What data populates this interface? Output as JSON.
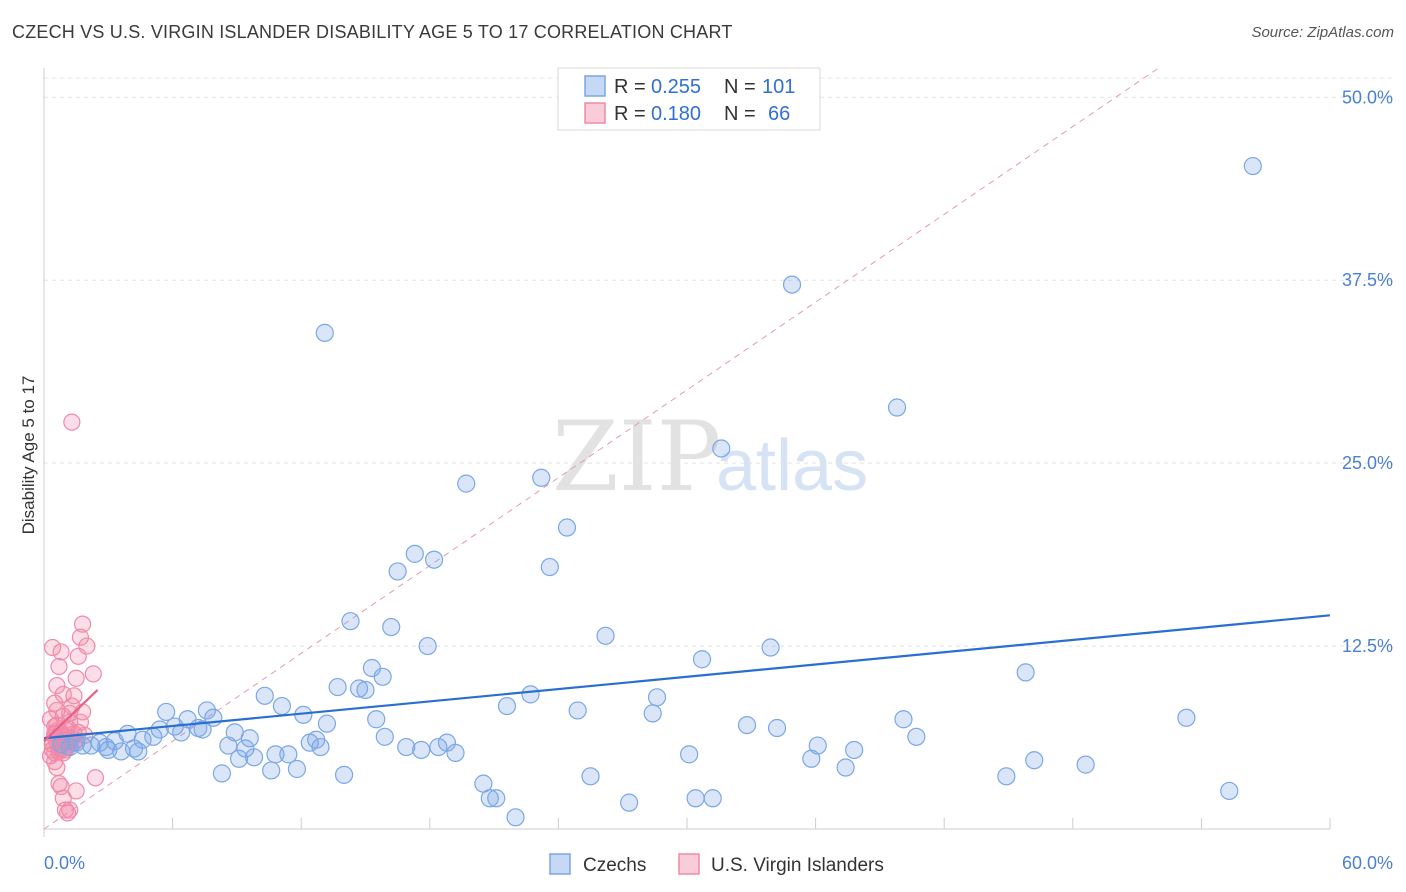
{
  "title": "CZECH VS U.S. VIRGIN ISLANDER DISABILITY AGE 5 TO 17 CORRELATION CHART",
  "source": "Source: ZipAtlas.com",
  "watermark": {
    "zip": "ZIP",
    "atlas": "atlas"
  },
  "legend": {
    "rows": [
      {
        "r_label": "R = ",
        "r_value": "0.255",
        "n_label": "N = ",
        "n_value": "101"
      },
      {
        "r_label": "R = ",
        "r_value": "0.180",
        "n_label": "N = ",
        "n_value": "66"
      }
    ]
  },
  "chart_data": {
    "type": "scatter",
    "title": "CZECH VS U.S. VIRGIN ISLANDER DISABILITY AGE 5 TO 17 CORRELATION CHART",
    "xlabel": "",
    "ylabel": "Disability Age 5 to 17",
    "xlim": [
      0,
      60
    ],
    "ylim": [
      0,
      52
    ],
    "x_tick_labels": [
      "0.0%",
      "60.0%"
    ],
    "y_ticks": [
      12.5,
      25.0,
      37.5,
      50.0
    ],
    "y_tick_labels": [
      "12.5%",
      "25.0%",
      "37.5%",
      "50.0%"
    ],
    "colors": {
      "czechs": "#7aa7e6",
      "virgin": "#f08aa8",
      "czech_line": "#2a6fd0",
      "virgin_line": "#e8608a",
      "diag": "#e59ab2"
    },
    "series": [
      {
        "name": "Czechs",
        "trend": {
          "x": [
            0,
            60
          ],
          "y": [
            6.2,
            14.6
          ]
        },
        "points": [
          [
            0.8,
            5.8
          ],
          [
            1.2,
            5.6
          ],
          [
            1.5,
            5.9
          ],
          [
            1.8,
            5.7
          ],
          [
            2.2,
            5.7
          ],
          [
            2.6,
            5.9
          ],
          [
            3.0,
            5.4
          ],
          [
            3.3,
            6.0
          ],
          [
            3.9,
            6.5
          ],
          [
            4.4,
            5.3
          ],
          [
            4.6,
            6.1
          ],
          [
            5.1,
            6.3
          ],
          [
            5.4,
            6.8
          ],
          [
            5.7,
            8.0
          ],
          [
            6.1,
            7.0
          ],
          [
            6.4,
            6.6
          ],
          [
            6.7,
            7.5
          ],
          [
            7.2,
            6.9
          ],
          [
            7.6,
            8.1
          ],
          [
            7.9,
            7.6
          ],
          [
            8.3,
            3.8
          ],
          [
            8.6,
            5.7
          ],
          [
            8.9,
            6.6
          ],
          [
            9.1,
            4.8
          ],
          [
            9.4,
            5.5
          ],
          [
            9.8,
            4.9
          ],
          [
            10.3,
            9.1
          ],
          [
            10.6,
            4.0
          ],
          [
            11.1,
            8.4
          ],
          [
            11.4,
            5.1
          ],
          [
            11.8,
            4.1
          ],
          [
            12.1,
            7.8
          ],
          [
            12.4,
            5.9
          ],
          [
            12.9,
            5.6
          ],
          [
            13.2,
            7.2
          ],
          [
            13.7,
            9.7
          ],
          [
            14.0,
            3.7
          ],
          [
            14.3,
            14.2
          ],
          [
            14.7,
            9.6
          ],
          [
            15.0,
            9.5
          ],
          [
            15.3,
            11.0
          ],
          [
            15.5,
            7.5
          ],
          [
            15.8,
            10.4
          ],
          [
            16.2,
            13.8
          ],
          [
            16.5,
            17.6
          ],
          [
            16.9,
            5.6
          ],
          [
            17.3,
            18.8
          ],
          [
            17.6,
            5.4
          ],
          [
            17.9,
            12.5
          ],
          [
            18.2,
            18.4
          ],
          [
            18.4,
            5.6
          ],
          [
            18.8,
            5.9
          ],
          [
            19.2,
            5.2
          ],
          [
            19.7,
            23.6
          ],
          [
            20.5,
            3.1
          ],
          [
            20.8,
            2.1
          ],
          [
            21.1,
            2.1
          ],
          [
            21.6,
            8.4
          ],
          [
            22.0,
            0.8
          ],
          [
            22.7,
            9.2
          ],
          [
            23.2,
            24.0
          ],
          [
            23.6,
            17.9
          ],
          [
            24.4,
            20.6
          ],
          [
            24.9,
            8.1
          ],
          [
            25.5,
            3.6
          ],
          [
            26.2,
            13.2
          ],
          [
            27.3,
            1.8
          ],
          [
            28.4,
            7.9
          ],
          [
            28.6,
            9.0
          ],
          [
            30.1,
            5.1
          ],
          [
            30.4,
            2.1
          ],
          [
            30.7,
            11.6
          ],
          [
            31.2,
            2.1
          ],
          [
            31.6,
            26.0
          ],
          [
            32.8,
            7.1
          ],
          [
            33.9,
            12.4
          ],
          [
            34.2,
            6.9
          ],
          [
            34.9,
            37.2
          ],
          [
            35.8,
            4.8
          ],
          [
            36.1,
            5.7
          ],
          [
            37.4,
            4.2
          ],
          [
            37.8,
            5.4
          ],
          [
            39.8,
            28.8
          ],
          [
            40.1,
            7.5
          ],
          [
            40.7,
            6.3
          ],
          [
            44.9,
            3.6
          ],
          [
            45.8,
            10.7
          ],
          [
            46.2,
            4.7
          ],
          [
            48.6,
            4.4
          ],
          [
            53.3,
            7.6
          ],
          [
            55.3,
            2.6
          ],
          [
            56.4,
            45.3
          ],
          [
            13.1,
            33.9
          ],
          [
            7.4,
            6.8
          ],
          [
            2.9,
            5.6
          ],
          [
            4.2,
            5.5
          ],
          [
            3.6,
            5.3
          ],
          [
            9.6,
            6.2
          ],
          [
            10.8,
            5.1
          ],
          [
            12.7,
            6.1
          ],
          [
            15.9,
            6.3
          ]
        ]
      },
      {
        "name": "U.S. Virgin Islanders",
        "trend": {
          "x": [
            0,
            2.5
          ],
          "y": [
            6.0,
            9.5
          ]
        },
        "points": [
          [
            0.4,
            5.8
          ],
          [
            0.5,
            6.3
          ],
          [
            0.6,
            7.1
          ],
          [
            0.7,
            5.5
          ],
          [
            0.8,
            6.6
          ],
          [
            0.9,
            7.7
          ],
          [
            1.0,
            5.4
          ],
          [
            1.1,
            6.9
          ],
          [
            0.3,
            7.5
          ],
          [
            0.5,
            8.6
          ],
          [
            0.6,
            9.8
          ],
          [
            0.7,
            11.1
          ],
          [
            0.8,
            12.1
          ],
          [
            0.9,
            5.2
          ],
          [
            1.0,
            6.1
          ],
          [
            1.2,
            7.3
          ],
          [
            1.3,
            8.4
          ],
          [
            1.4,
            9.1
          ],
          [
            1.5,
            10.3
          ],
          [
            1.6,
            11.8
          ],
          [
            1.7,
            13.1
          ],
          [
            1.8,
            14.0
          ],
          [
            1.3,
            27.8
          ],
          [
            0.4,
            12.4
          ],
          [
            0.5,
            4.6
          ],
          [
            0.6,
            4.2
          ],
          [
            0.7,
            3.1
          ],
          [
            0.8,
            2.9
          ],
          [
            0.9,
            2.1
          ],
          [
            1.0,
            1.3
          ],
          [
            1.1,
            1.1
          ],
          [
            1.2,
            1.3
          ],
          [
            1.5,
            2.6
          ],
          [
            0.4,
            6.0
          ],
          [
            0.5,
            6.5
          ],
          [
            0.6,
            5.9
          ],
          [
            0.7,
            6.2
          ],
          [
            0.8,
            5.7
          ],
          [
            0.9,
            6.4
          ],
          [
            1.0,
            6.8
          ],
          [
            1.1,
            5.6
          ],
          [
            1.3,
            6.2
          ],
          [
            1.4,
            5.9
          ],
          [
            1.6,
            6.6
          ],
          [
            1.7,
            7.3
          ],
          [
            1.8,
            8.0
          ],
          [
            2.0,
            12.5
          ],
          [
            2.3,
            10.6
          ],
          [
            2.4,
            3.5
          ],
          [
            0.3,
            5.0
          ],
          [
            0.4,
            5.4
          ],
          [
            0.5,
            7.0
          ],
          [
            0.6,
            6.7
          ],
          [
            0.7,
            5.3
          ],
          [
            0.8,
            6.0
          ],
          [
            0.9,
            5.5
          ],
          [
            1.0,
            6.3
          ],
          [
            1.1,
            6.0
          ],
          [
            1.2,
            5.8
          ],
          [
            1.4,
            6.5
          ],
          [
            1.5,
            6.1
          ],
          [
            0.6,
            8.1
          ],
          [
            0.9,
            9.2
          ],
          [
            1.2,
            7.9
          ],
          [
            0.5,
            5.2
          ],
          [
            1.9,
            6.4
          ]
        ]
      }
    ],
    "bottom_legend": [
      "Czechs",
      "U.S. Virgin Islanders"
    ]
  }
}
